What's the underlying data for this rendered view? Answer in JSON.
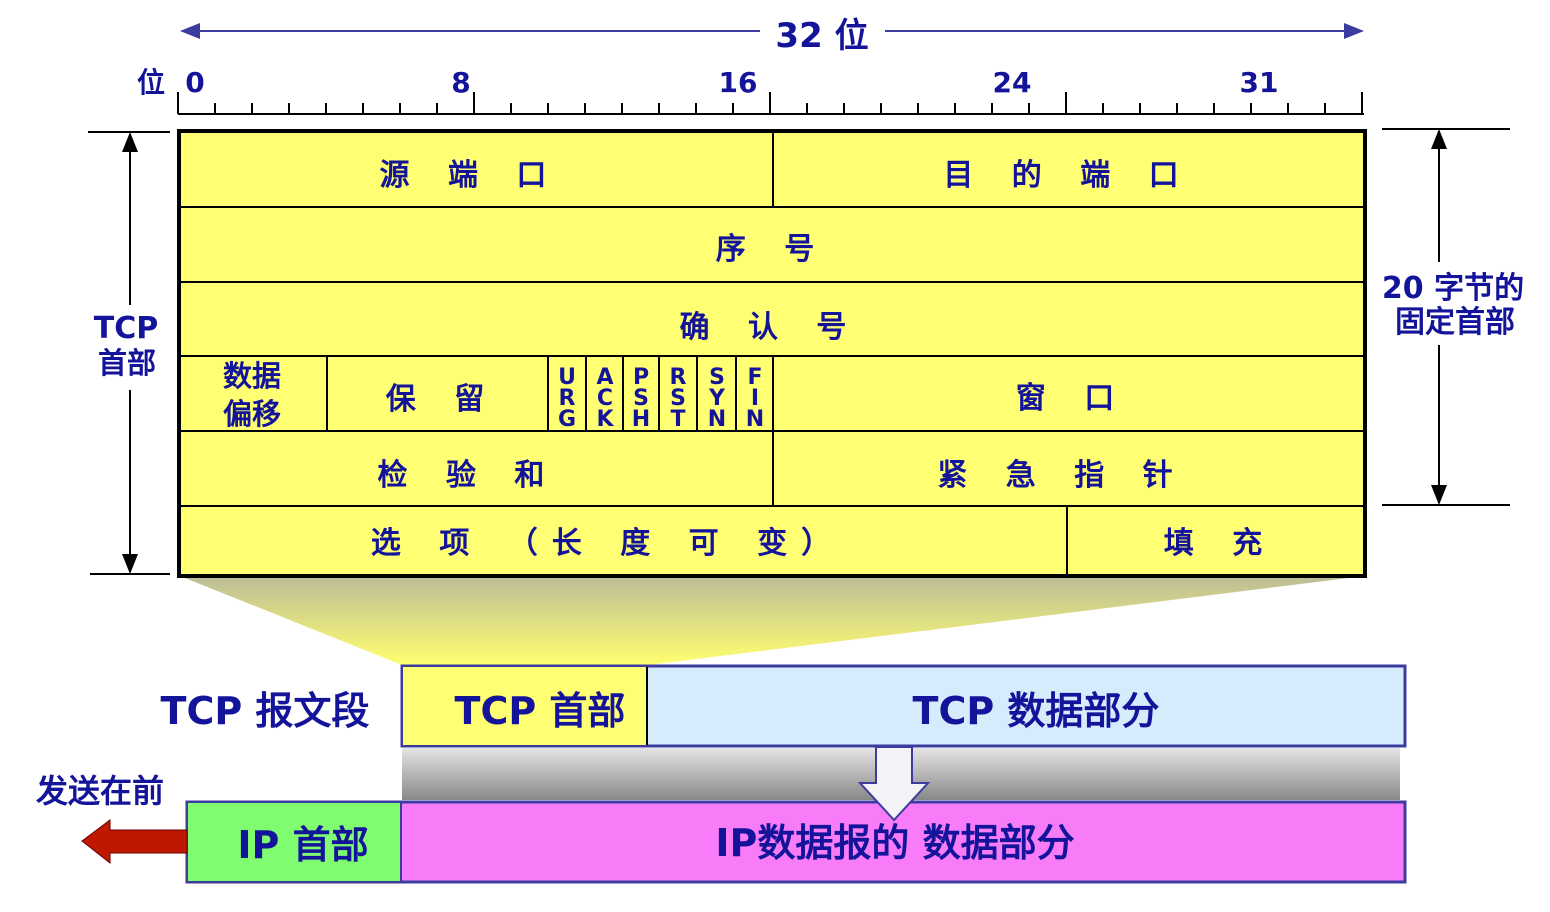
{
  "ruler": {
    "width_label": "32 位",
    "bit_label": "位",
    "ticks": [
      "0",
      "8",
      "16",
      "24",
      "31"
    ]
  },
  "left_label": {
    "line1": "TCP",
    "line2": "首部"
  },
  "right_label": {
    "line1": "20 字节的",
    "line2": "固定首部"
  },
  "header_fields": {
    "source_port": "源 端 口",
    "dest_port": "目 的 端 口",
    "seq": "序  号",
    "ack": "确   认   号",
    "data_offset_1": "数据",
    "data_offset_2": "偏移",
    "reserved": "保  留",
    "flags": [
      [
        "U",
        "R",
        "G"
      ],
      [
        "A",
        "C",
        "K"
      ],
      [
        "P",
        "S",
        "H"
      ],
      [
        "R",
        "S",
        "T"
      ],
      [
        "S",
        "Y",
        "N"
      ],
      [
        "F",
        "I",
        "N"
      ]
    ],
    "window": "窗  口",
    "checksum": "检  验  和",
    "urgent": "紧  急  指  针",
    "options": "选  项  （长 度 可 变）",
    "padding": "填  充"
  },
  "segment": {
    "label": "TCP 报文段",
    "header": "TCP 首部",
    "data": "TCP 数据部分"
  },
  "ip": {
    "send_first": "发送在前",
    "header": "IP 首部",
    "data": "IP数据报的 数据部分"
  },
  "colors": {
    "text": "#14149a",
    "header_fill": "#ffff73",
    "tcp_data_fill": "#d6ebfc",
    "ip_header_fill": "#80fc70",
    "ip_data_fill": "#f87cf8",
    "box_border": "#3c3ca0",
    "arrow_red": "#c01800"
  }
}
